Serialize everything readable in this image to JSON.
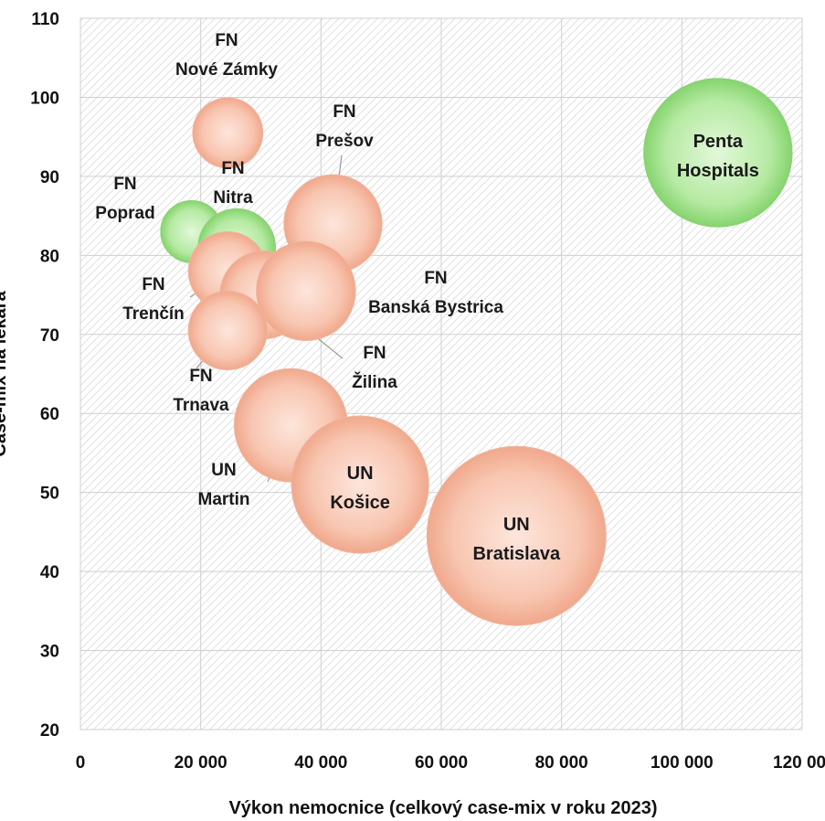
{
  "chart_data": {
    "type": "bubble",
    "title": "",
    "xlabel": "Výkon nemocnice (celkový case-mix v roku 2023)",
    "ylabel": "Case-mix na lekára",
    "xlim": [
      0,
      120000
    ],
    "ylim": [
      20,
      110
    ],
    "x_ticks": [
      "0",
      "20 000",
      "40 000",
      "60 000",
      "80 000",
      "100 000",
      "120 000"
    ],
    "y_ticks": [
      "20",
      "30",
      "40",
      "50",
      "60",
      "70",
      "80",
      "90",
      "100",
      "110"
    ],
    "grid": true,
    "colors": {
      "orange": "#f4b39a",
      "green": "#9fde88",
      "grid": "#d4d4d4",
      "hatch": "#e2e2e2"
    },
    "points": [
      {
        "lines": [
          "FN",
          "Nové Zámky"
        ],
        "x": 24500,
        "y": 95.5,
        "size": 2300,
        "color": "orange"
      },
      {
        "lines": [
          "FN",
          "Prešov"
        ],
        "x": 42000,
        "y": 84,
        "size": 4500,
        "color": "orange"
      },
      {
        "lines": [
          "FN",
          "Poprad"
        ],
        "x": 18500,
        "y": 83,
        "size": 1800,
        "color": "green"
      },
      {
        "lines": [
          "FN",
          "Nitra"
        ],
        "x": 26000,
        "y": 81,
        "size": 2800,
        "color": "green"
      },
      {
        "lines": [
          "FN",
          "Trenčín"
        ],
        "x": 24500,
        "y": 78,
        "size": 2900,
        "color": "orange"
      },
      {
        "lines": [
          "FN",
          "Žilina"
        ],
        "x": 30500,
        "y": 75,
        "size": 3600,
        "color": "orange"
      },
      {
        "lines": [
          "FN",
          "Banská Bystrica"
        ],
        "x": 37500,
        "y": 75.5,
        "size": 4600,
        "color": "orange"
      },
      {
        "lines": [
          "FN",
          "Trnava"
        ],
        "x": 24500,
        "y": 70.5,
        "size": 2900,
        "color": "orange"
      },
      {
        "lines": [
          "UN",
          "Martin"
        ],
        "x": 35000,
        "y": 58.5,
        "size": 6000,
        "color": "orange"
      },
      {
        "lines": [
          "UN",
          "Košice"
        ],
        "x": 46500,
        "y": 51,
        "size": 8800,
        "color": "orange"
      },
      {
        "lines": [
          "UN",
          "Bratislava"
        ],
        "x": 72500,
        "y": 44.5,
        "size": 15000,
        "color": "orange"
      },
      {
        "lines": [
          "Penta",
          "Hospitals"
        ],
        "x": 106000,
        "y": 93,
        "size": 10300,
        "color": "green"
      }
    ]
  }
}
